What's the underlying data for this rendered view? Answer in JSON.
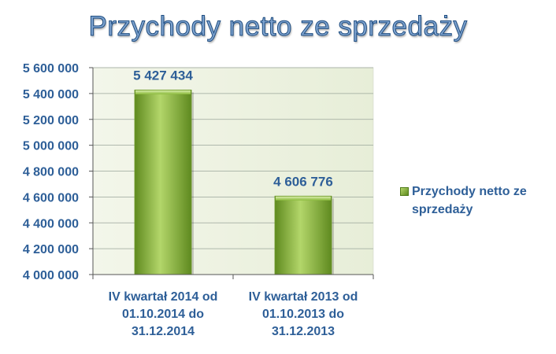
{
  "chart_data": {
    "type": "bar",
    "title": "Przychody netto ze sprzedaży",
    "categories": [
      [
        "IV kwartał 2014 od",
        "01.10.2014 do",
        "31.12.2014"
      ],
      [
        "IV kwartał 2013 od",
        "01.10.2013 do",
        "31.12.2013"
      ]
    ],
    "series": [
      {
        "name": "Przychody netto ze sprzedaży",
        "values": [
          5427434,
          4606776
        ],
        "labels": [
          "5 427 434",
          "4 606 776"
        ]
      }
    ],
    "ylim": [
      4000000,
      5600000
    ],
    "yticks": [
      4000000,
      4200000,
      4400000,
      4600000,
      4800000,
      5000000,
      5200000,
      5400000,
      5600000
    ],
    "ytick_labels": [
      "4 000 000",
      "4 200 000",
      "4 400 000",
      "4 600 000",
      "4 800 000",
      "5 000 000",
      "5 200 000",
      "5 400 000",
      "5 600 000"
    ],
    "legend_position": "right",
    "grid": true,
    "colors": {
      "bar": "#8bbb3c",
      "bar_light": "#b3d66a",
      "bar_dark": "#5f8a1f",
      "plot_bg": "#eef3e2",
      "text": "#2e5f98"
    }
  }
}
